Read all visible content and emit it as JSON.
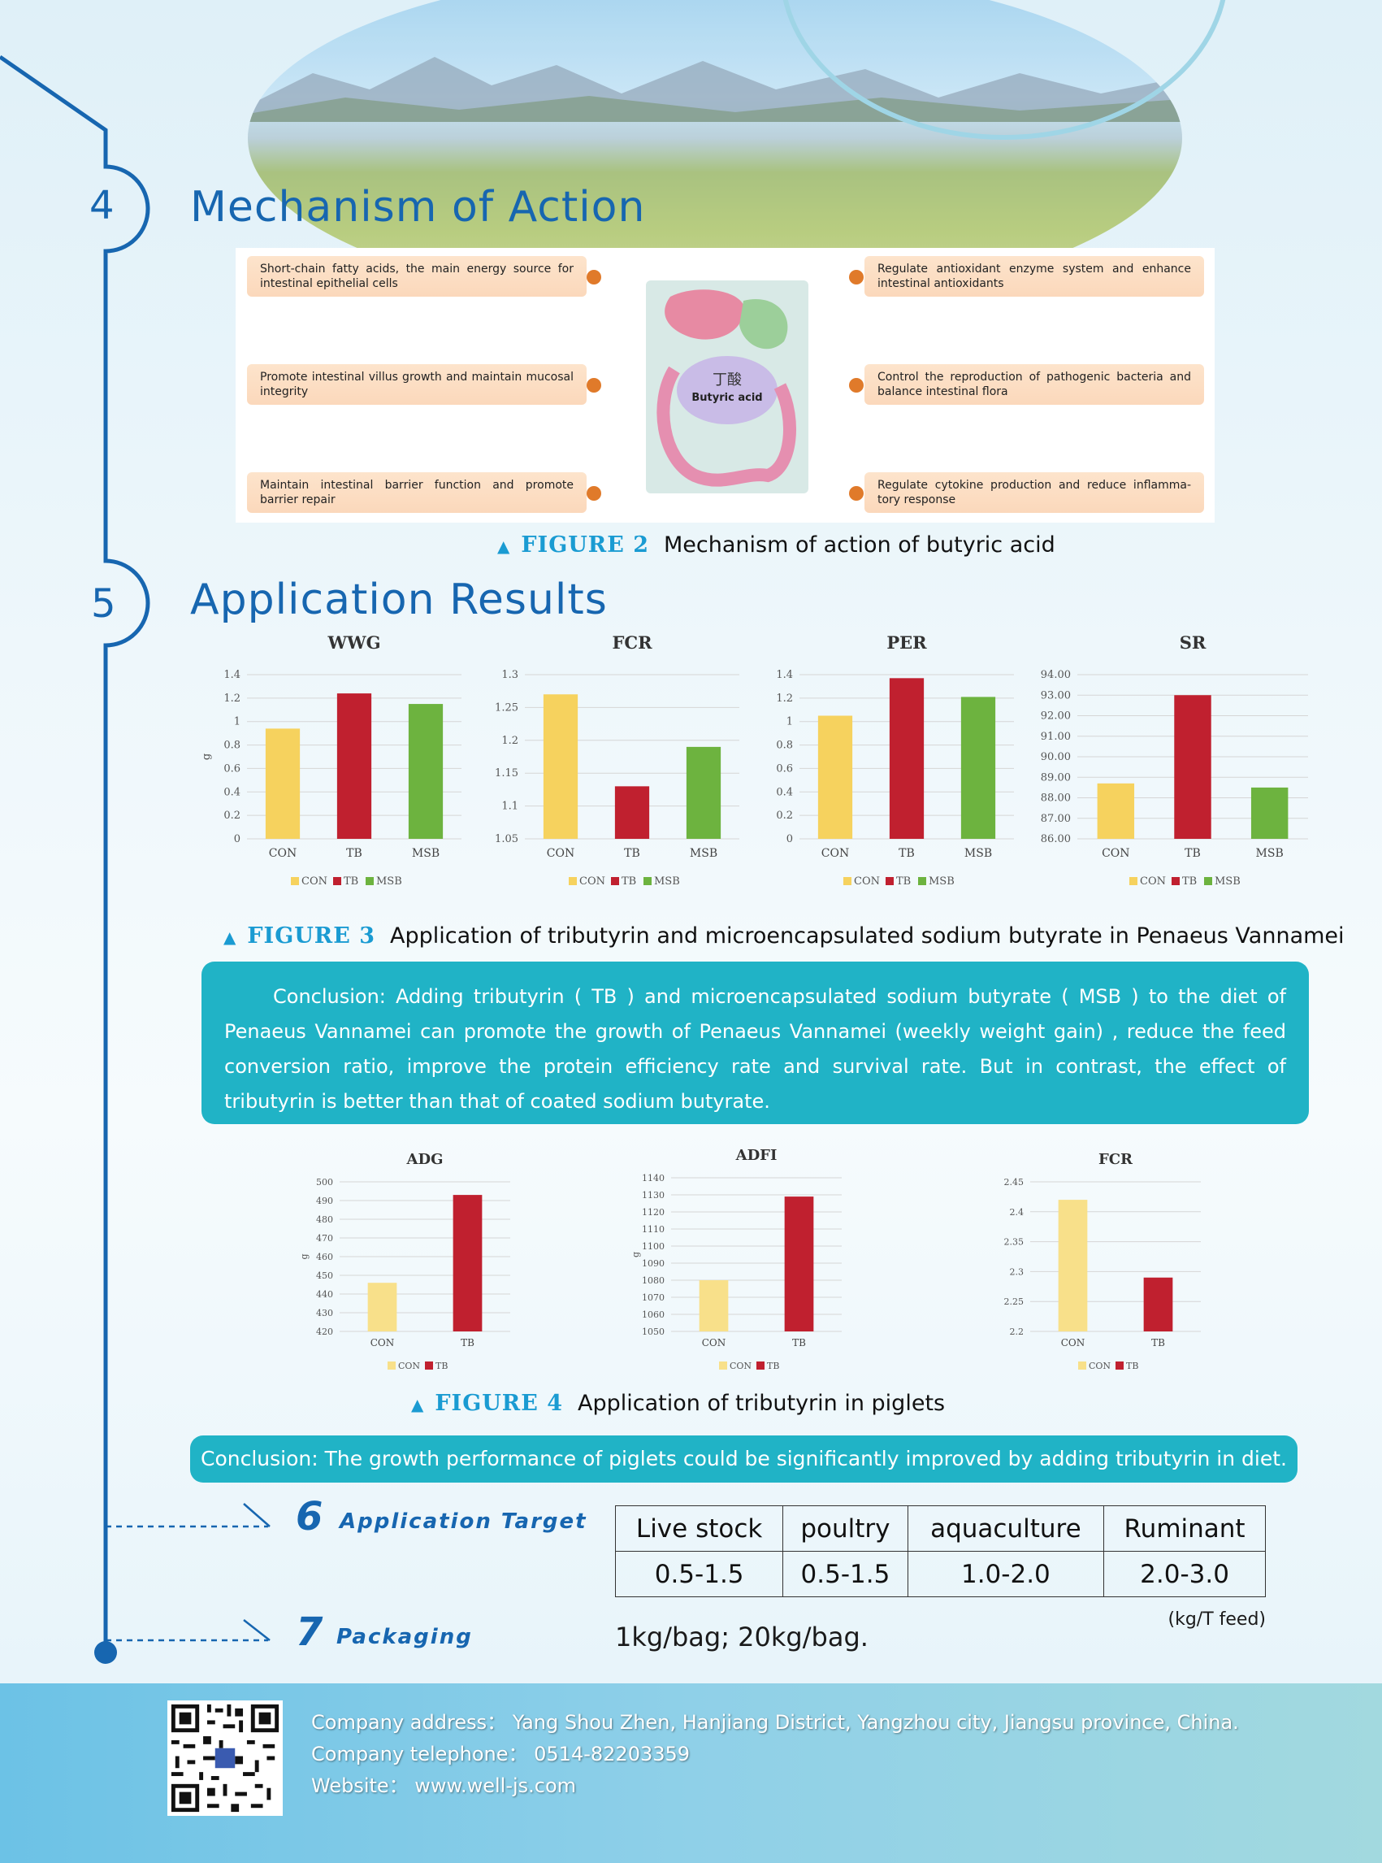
{
  "sections": {
    "mechanism": {
      "number": "4",
      "title": "Mechanism of Action"
    },
    "results": {
      "number": "5",
      "title": "Application Results"
    },
    "target": {
      "number": "6",
      "title": "Application Target"
    },
    "packaging": {
      "number": "7",
      "title": "Packaging",
      "text": "1kg/bag; 20kg/bag."
    }
  },
  "mechanism_figure": {
    "left_items": [
      "Short-chain fatty acids, the main energy source for intestinal epithelial cells",
      "Promote intestinal villus growth and maintain mucosal integrity",
      "Maintain intestinal barrier function and promote barrier repair"
    ],
    "right_items": [
      "Regulate antioxidant enzyme system and enhance intestinal antioxidants",
      "Control the reproduction of pathogenic bacteria and balance intestinal flora",
      "Regulate cytokine production and reduce inflamma-tory response"
    ],
    "center_label_cn": "丁酸",
    "center_label_en": "Butyric acid"
  },
  "figures": {
    "fig2": {
      "label": "FIGURE 2",
      "caption": "Mechanism of action of butyric acid"
    },
    "fig3": {
      "label": "FIGURE 3",
      "caption": "Application of tributyrin and microencapsulated sodium butyrate in Penaeus Vannamei"
    },
    "fig4": {
      "label": "FIGURE 4",
      "caption": "Application of tributyrin in piglets"
    }
  },
  "conclusions": {
    "shrimp": "Conclusion: Adding tributyrin ( TB ) and microencapsulated sodium butyrate ( MSB ) to the diet of Penaeus Vannamei can promote the growth of Penaeus Vannamei (weekly weight gain) , reduce the feed conversion ratio, improve the protein efficiency rate and survival rate. But in contrast, the effect of tributyrin is better than that of coated sodium butyrate.",
    "piglets": "Conclusion: The growth performance of piglets could be significantly improved by adding tributyrin in diet."
  },
  "colors": {
    "CON": "#f6d25e",
    "CON_light": "#f8e08a",
    "TB": "#c0202f",
    "MSB": "#6db33f",
    "accent": "#1766b0",
    "teal": "#20b3c6"
  },
  "chart_data": [
    {
      "type": "bar",
      "title": "WWG",
      "ylabel": "g",
      "categories": [
        "CON",
        "TB",
        "MSB"
      ],
      "values": [
        0.94,
        1.24,
        1.15
      ],
      "ylim": [
        0,
        1.4
      ],
      "yticks": [
        "0",
        "0.2",
        "0.4",
        "0.6",
        "0.8",
        "1",
        "1.2",
        "1.4"
      ],
      "legend": [
        "CON",
        "TB",
        "MSB"
      ],
      "grid": true,
      "legend_position": "bottom"
    },
    {
      "type": "bar",
      "title": "FCR",
      "ylabel": "",
      "categories": [
        "CON",
        "TB",
        "MSB"
      ],
      "values": [
        1.27,
        1.13,
        1.19
      ],
      "ylim": [
        1.05,
        1.3
      ],
      "yticks": [
        "1.05",
        "1.1",
        "1.15",
        "1.2",
        "1.25",
        "1.3"
      ],
      "legend": [
        "CON",
        "TB",
        "MSB"
      ],
      "grid": true,
      "legend_position": "bottom"
    },
    {
      "type": "bar",
      "title": "PER",
      "ylabel": "",
      "categories": [
        "CON",
        "TB",
        "MSB"
      ],
      "values": [
        1.05,
        1.37,
        1.21
      ],
      "ylim": [
        0,
        1.4
      ],
      "yticks": [
        "0",
        "0.2",
        "0.4",
        "0.6",
        "0.8",
        "1",
        "1.2",
        "1.4"
      ],
      "legend": [
        "CON",
        "TB",
        "MSB"
      ],
      "grid": true,
      "legend_position": "bottom"
    },
    {
      "type": "bar",
      "title": "SR",
      "ylabel": "",
      "categories": [
        "CON",
        "TB",
        "MSB"
      ],
      "values": [
        88.7,
        93.0,
        88.5
      ],
      "ylim": [
        86,
        94
      ],
      "yticks": [
        "86.00",
        "87.00",
        "88.00",
        "89.00",
        "90.00",
        "91.00",
        "92.00",
        "93.00",
        "94.00"
      ],
      "legend": [
        "CON",
        "TB",
        "MSB"
      ],
      "grid": true,
      "legend_position": "bottom"
    },
    {
      "type": "bar",
      "title": "ADG",
      "ylabel": "g",
      "categories": [
        "CON",
        "TB"
      ],
      "values": [
        446,
        493
      ],
      "ylim": [
        420,
        500
      ],
      "yticks": [
        "420",
        "430",
        "440",
        "450",
        "460",
        "470",
        "480",
        "490",
        "500"
      ],
      "legend": [
        "CON",
        "TB"
      ],
      "grid": true,
      "legend_position": "bottom"
    },
    {
      "type": "bar",
      "title": "ADFI",
      "ylabel": "g",
      "categories": [
        "CON",
        "TB"
      ],
      "values": [
        1080,
        1129
      ],
      "ylim": [
        1050,
        1140
      ],
      "yticks": [
        "1050",
        "1060",
        "1070",
        "1080",
        "1090",
        "1100",
        "1110",
        "1120",
        "1130",
        "1140"
      ],
      "legend": [
        "CON",
        "TB"
      ],
      "grid": true,
      "legend_position": "bottom"
    },
    {
      "type": "bar",
      "title": "FCR",
      "ylabel": "",
      "categories": [
        "CON",
        "TB"
      ],
      "values": [
        2.42,
        2.29
      ],
      "ylim": [
        2.2,
        2.45
      ],
      "yticks": [
        "2.2",
        "2.25",
        "2.3",
        "2.35",
        "2.4",
        "2.45"
      ],
      "legend": [
        "CON",
        "TB"
      ],
      "grid": true,
      "legend_position": "bottom"
    }
  ],
  "target_table": {
    "headers": [
      "Live stock",
      "poultry",
      "aquaculture",
      "Ruminant"
    ],
    "values": [
      "0.5-1.5",
      "0.5-1.5",
      "1.0-2.0",
      "2.0-3.0"
    ],
    "unit": "(kg/T feed)"
  },
  "footer": {
    "address": "Company address： Yang Shou Zhen, Hanjiang District, Yangzhou city, Jiangsu province, China.",
    "telephone": "Company telephone： 0514-82203359",
    "website": "Website： www.well-js.com"
  }
}
